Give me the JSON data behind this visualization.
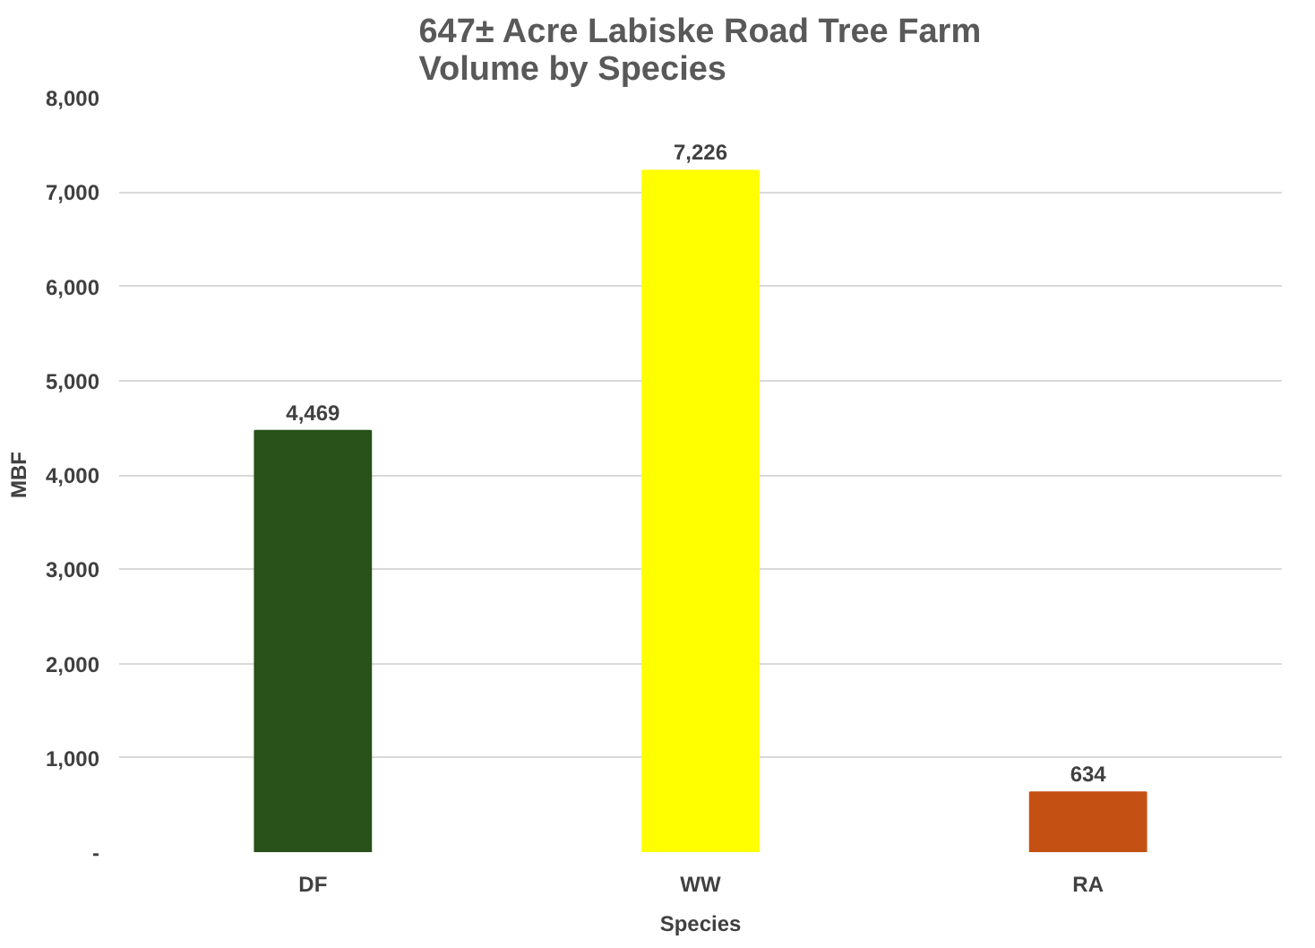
{
  "chart_data": {
    "type": "bar",
    "title": "647± Acre Labiske Road Tree Farm\nVolume by Species",
    "xlabel": "Species",
    "ylabel": "MBF",
    "categories": [
      "DF",
      "WW",
      "RA"
    ],
    "values": [
      4469,
      7226,
      634
    ],
    "colors": [
      "#285219",
      "#ffff00",
      "#c55014"
    ],
    "value_labels": [
      "4,469",
      "7,226",
      "634"
    ],
    "ylim": [
      0,
      8000
    ],
    "yticks": [
      {
        "value": 0,
        "label": "-"
      },
      {
        "value": 1000,
        "label": "1,000"
      },
      {
        "value": 2000,
        "label": "2,000"
      },
      {
        "value": 3000,
        "label": "3,000"
      },
      {
        "value": 4000,
        "label": "4,000"
      },
      {
        "value": 5000,
        "label": "5,000"
      },
      {
        "value": 6000,
        "label": "6,000"
      },
      {
        "value": 7000,
        "label": "7,000"
      },
      {
        "value": 8000,
        "label": "8,000"
      }
    ],
    "grid": "y"
  }
}
